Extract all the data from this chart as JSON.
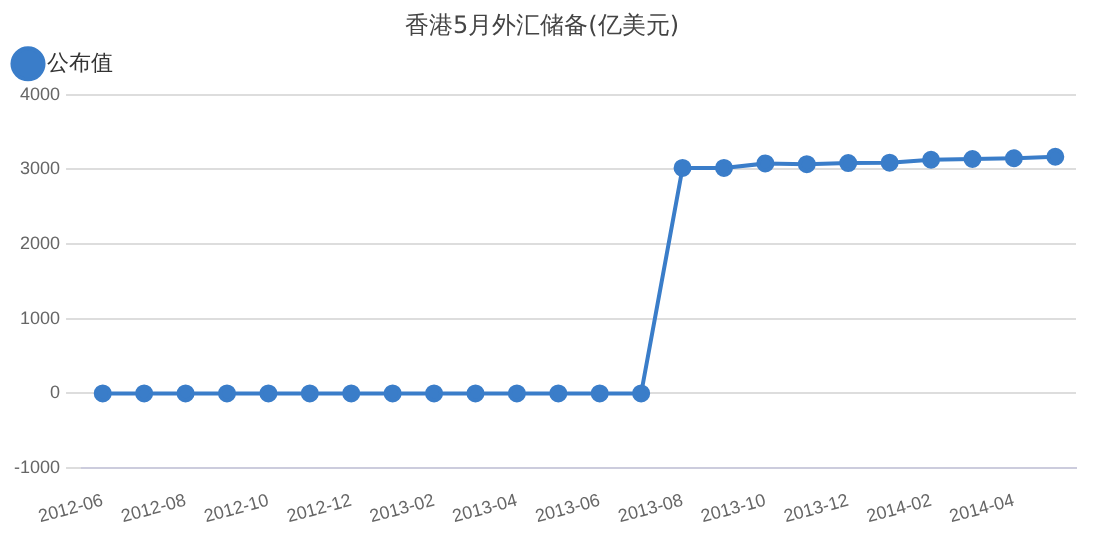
{
  "chart_data": {
    "type": "line",
    "title": "香港5月外汇储备(亿美元)",
    "categories": [
      "2012-06",
      null,
      "2012-08",
      null,
      "2012-10",
      null,
      "2012-12",
      null,
      "2013-02",
      null,
      "2013-04",
      null,
      "2013-06",
      null,
      "2013-08",
      null,
      "2013-10",
      null,
      "2013-12",
      null,
      "2014-02",
      null,
      "2014-04",
      null
    ],
    "series": [
      {
        "name": "公布值",
        "color": "#3a7dc9",
        "values": [
          0,
          0,
          0,
          0,
          0,
          0,
          0,
          0,
          0,
          0,
          0,
          0,
          0,
          0,
          3020,
          3020,
          3080,
          3070,
          3085,
          3090,
          3130,
          3140,
          3150,
          3170
        ]
      }
    ],
    "ylim": [
      -1000,
      4000
    ],
    "yticks": [
      -1000,
      0,
      1000,
      2000,
      3000,
      4000
    ],
    "grid": "y",
    "legend": "top left",
    "marker": "circle",
    "line_style": "solid"
  }
}
